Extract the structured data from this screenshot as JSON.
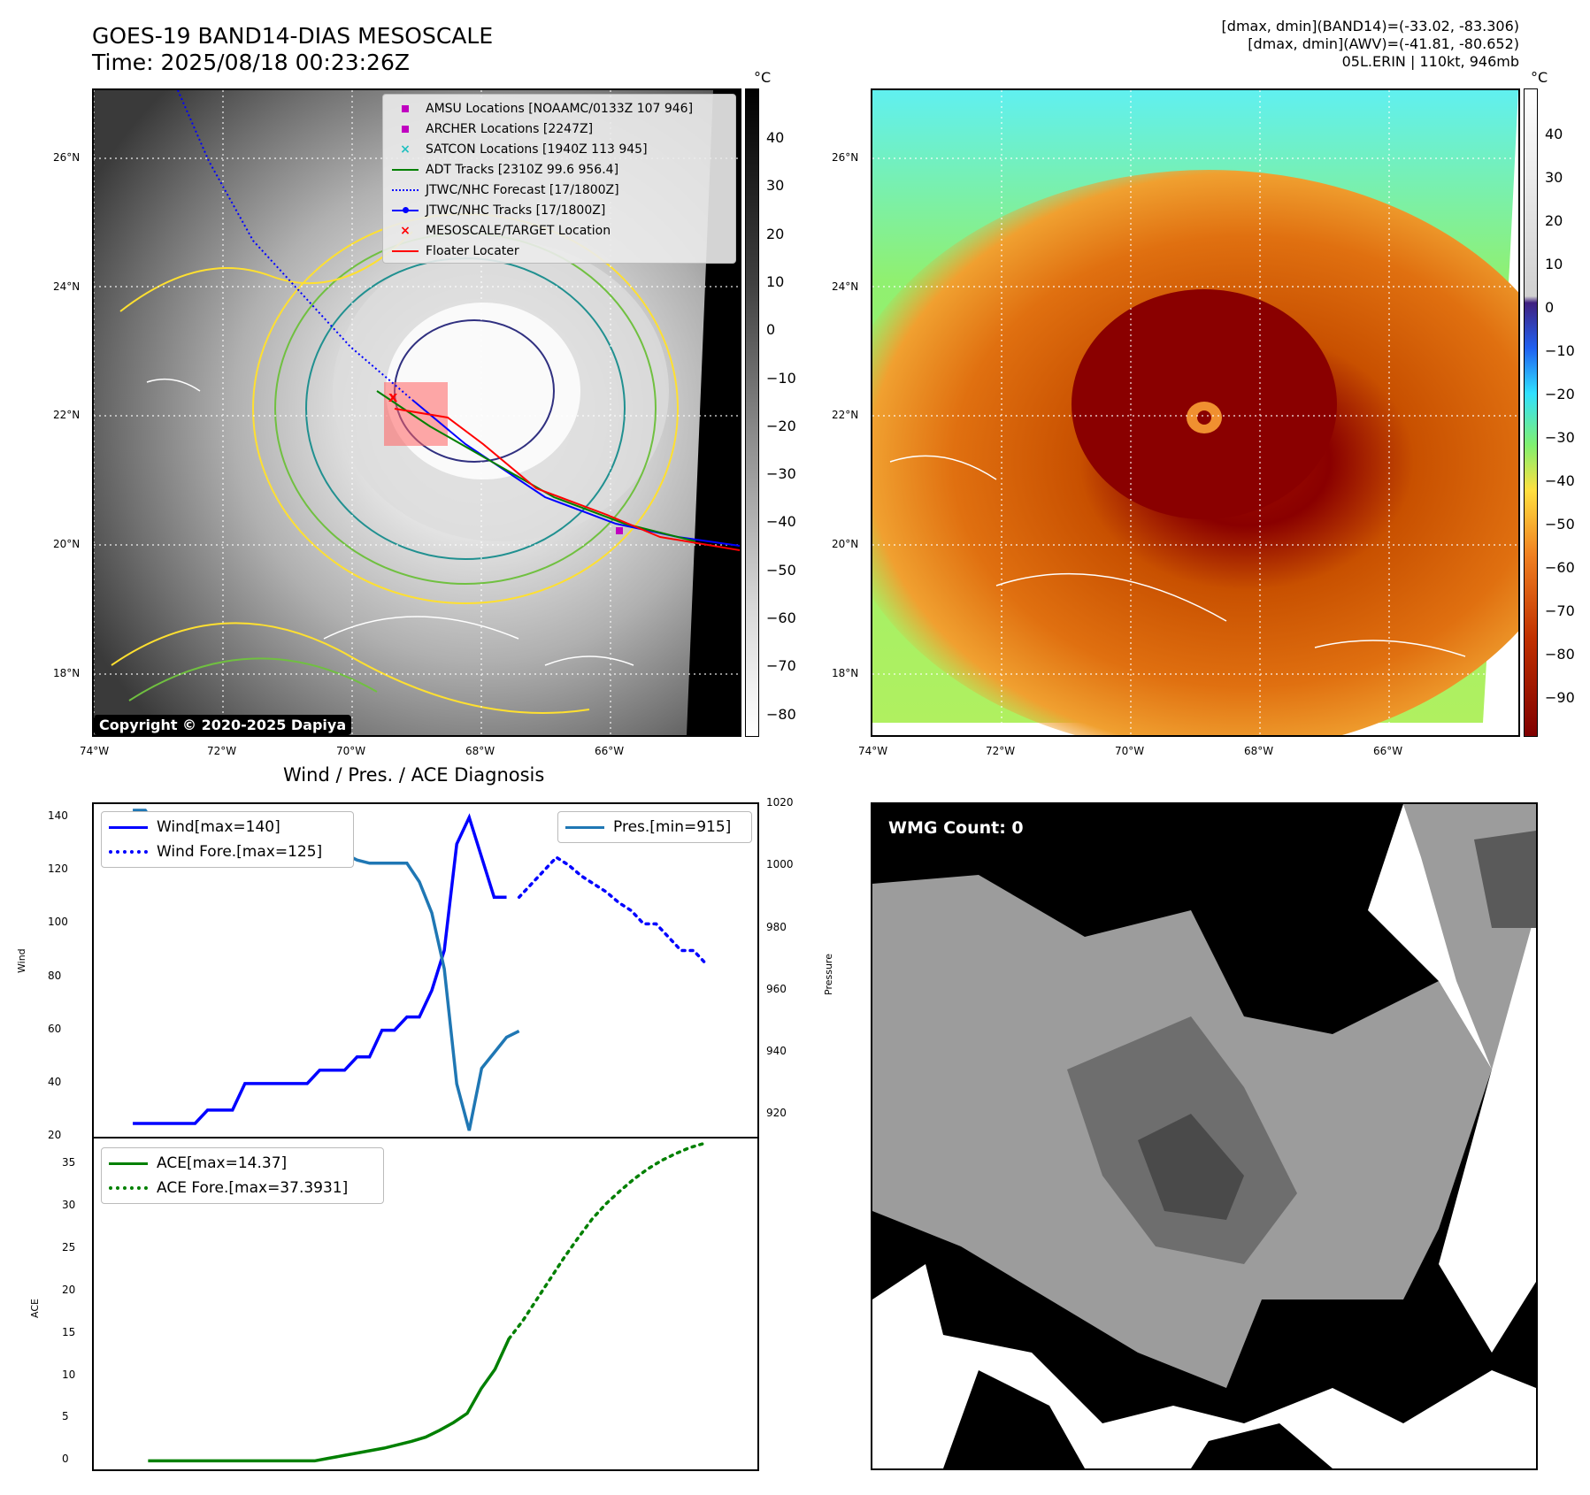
{
  "header": {
    "title_line1": "GOES-19 BAND14-DIAS MESOSCALE",
    "title_line2": "Time: 2025/08/18 00:23:26Z",
    "info_line1": "[dmax, dmin](BAND14)=(-33.02, -83.306)",
    "info_line2": "[dmax, dmin](AWV)=(-41.81, -80.652)",
    "info_line3": "05L.ERIN | 110kt, 946mb"
  },
  "map": {
    "lat_ticks": [
      "26°N",
      "24°N",
      "22°N",
      "20°N",
      "18°N"
    ],
    "lon_ticks": [
      "74°W",
      "72°W",
      "70°W",
      "68°W",
      "66°W"
    ],
    "copyright": "Copyright © 2020-2025 Dapiya",
    "colorbar_unit": "°C",
    "colorbar_left_ticks": [
      "40",
      "30",
      "20",
      "10",
      "0",
      "−10",
      "−20",
      "−30",
      "−40",
      "−50",
      "−60",
      "−70",
      "−80"
    ],
    "colorbar_right_ticks": [
      "40",
      "30",
      "20",
      "10",
      "0",
      "−10",
      "−20",
      "−30",
      "−40",
      "−50",
      "−60",
      "−70",
      "−80",
      "−90"
    ],
    "legend": [
      {
        "label": "AMSU Locations [NOAAMC/0133Z 107 946]",
        "color": "#c000c0",
        "symbol": "square"
      },
      {
        "label": "ARCHER Locations [2247Z]",
        "color": "#c000c0",
        "symbol": "square"
      },
      {
        "label": "SATCON Locations [1940Z 113 945]",
        "color": "#20c0c0",
        "symbol": "x"
      },
      {
        "label": "ADT Tracks [2310Z 99.6 956.4]",
        "color": "#008000",
        "symbol": "line"
      },
      {
        "label": "JTWC/NHC Forecast [17/1800Z]",
        "color": "#0000ff",
        "symbol": "dotted"
      },
      {
        "label": "JTWC/NHC Tracks [17/1800Z]",
        "color": "#0000ff",
        "symbol": "line-dot"
      },
      {
        "label": "MESOSCALE/TARGET Location",
        "color": "#ff0000",
        "symbol": "x"
      },
      {
        "label": "Floater Locater",
        "color": "#ff0000",
        "symbol": "line"
      }
    ],
    "colors": {
      "ice": "#ffffff",
      "warm": "#2a2a2a",
      "yellow": "#ffe030",
      "green": "#70c040",
      "teal": "#209090",
      "navy": "#303080"
    }
  },
  "diag": {
    "subtitle": "Wind / Pres. / ACE Diagnosis",
    "wind_legend": "Wind[max=140]",
    "wind_fore_legend": "Wind Fore.[max=125]",
    "pres_legend": "Pres.[min=915]",
    "ace_legend": "ACE[max=14.37]",
    "ace_fore_legend": "ACE Fore.[max=37.3931]",
    "ylabel_wind": "Wind",
    "ylabel_pres": "Pressure",
    "ylabel_ace": "ACE"
  },
  "wmg": {
    "label": "WMG Count: 0"
  },
  "chart_data": [
    {
      "type": "line",
      "name": "Wind / Pres.",
      "ylim": [
        20,
        145
      ],
      "y2lim": [
        913,
        1020
      ],
      "yticks": [
        20,
        40,
        60,
        80,
        100,
        120,
        140
      ],
      "y2ticks": [
        920,
        940,
        960,
        980,
        1000,
        1020
      ],
      "series": [
        {
          "name": "Wind[max=140]",
          "axis": "left",
          "color": "#0000ff",
          "style": "solid",
          "x": [
            0,
            1,
            2,
            3,
            4,
            5,
            6,
            7,
            8,
            9,
            10,
            11,
            12,
            13,
            14,
            15,
            16,
            17,
            18,
            19,
            20,
            21,
            22,
            23,
            24,
            25,
            26,
            27,
            28,
            29,
            30
          ],
          "values": [
            25,
            25,
            25,
            25,
            25,
            25,
            30,
            30,
            30,
            40,
            40,
            40,
            40,
            40,
            40,
            45,
            45,
            45,
            50,
            50,
            60,
            60,
            65,
            65,
            75,
            90,
            130,
            140,
            125,
            110,
            110
          ]
        },
        {
          "name": "Wind Fore.[max=125]",
          "axis": "left",
          "color": "#0000ff",
          "style": "dotted",
          "x": [
            31,
            32,
            33,
            34,
            35,
            36,
            37,
            38,
            39,
            40,
            41,
            42,
            43,
            44,
            45,
            46
          ],
          "values": [
            110,
            115,
            120,
            125,
            122,
            118,
            115,
            112,
            108,
            105,
            100,
            100,
            95,
            90,
            90,
            85
          ]
        },
        {
          "name": "Pres.[min=915]",
          "axis": "right",
          "color": "#1f77b4",
          "style": "solid",
          "x": [
            0,
            1,
            2,
            3,
            4,
            5,
            6,
            7,
            8,
            9,
            10,
            11,
            12,
            13,
            14,
            15,
            16,
            17,
            18,
            19,
            20,
            21,
            22,
            23,
            24,
            25,
            26,
            27,
            28,
            29,
            30,
            31
          ],
          "values": [
            1018,
            1018,
            1012,
            1010,
            1010,
            1010,
            1008,
            1008,
            1006,
            1006,
            1006,
            1006,
            1006,
            1006,
            1006,
            1004,
            1004,
            1004,
            1002,
            1001,
            1001,
            1001,
            1001,
            995,
            985,
            967,
            930,
            915,
            935,
            940,
            945,
            947
          ]
        }
      ]
    },
    {
      "type": "line",
      "name": "ACE",
      "ylim": [
        -1,
        38
      ],
      "yticks": [
        0,
        5,
        10,
        15,
        20,
        25,
        30,
        35
      ],
      "series": [
        {
          "name": "ACE[max=14.37]",
          "color": "#008000",
          "style": "solid",
          "x": [
            0,
            4,
            8,
            12,
            16,
            20,
            24,
            26,
            28,
            30,
            32,
            34,
            36,
            38,
            40,
            42,
            44,
            46,
            48,
            50,
            52
          ],
          "values": [
            0,
            0,
            0,
            0,
            0,
            0,
            0,
            0.3,
            0.6,
            0.9,
            1.2,
            1.5,
            1.9,
            2.3,
            2.8,
            3.6,
            4.5,
            5.6,
            8.5,
            10.8,
            14.37
          ]
        },
        {
          "name": "ACE Fore.[max=37.3931]",
          "color": "#008000",
          "style": "dotted",
          "x": [
            52,
            54,
            56,
            58,
            60,
            62,
            64,
            66,
            68,
            70,
            72,
            74,
            76,
            78,
            80
          ],
          "values": [
            14.37,
            16.5,
            19.0,
            21.5,
            24.0,
            26.3,
            28.5,
            30.3,
            31.8,
            33.2,
            34.4,
            35.4,
            36.2,
            36.9,
            37.39
          ]
        }
      ]
    }
  ]
}
